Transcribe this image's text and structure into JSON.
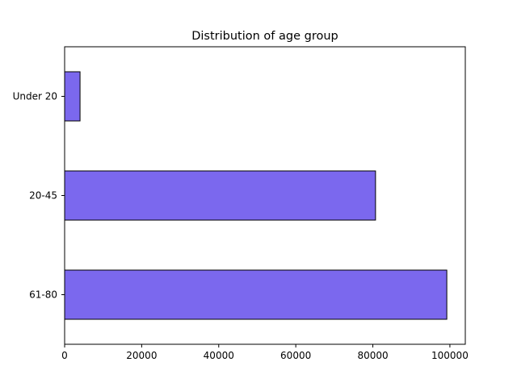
{
  "chart_data": {
    "type": "bar",
    "orientation": "horizontal",
    "title": "Distribution of age group",
    "xlabel": "",
    "ylabel": "",
    "categories": [
      "Under 20",
      "20-45",
      "61-80"
    ],
    "values": [
      4000,
      80700,
      99200
    ],
    "xlim": [
      0,
      104000
    ],
    "xticks": [
      0,
      20000,
      40000,
      60000,
      80000,
      100000
    ],
    "bar_color": "#7b68ee",
    "edge_color": "#000000",
    "grid": false,
    "legend": "none"
  }
}
